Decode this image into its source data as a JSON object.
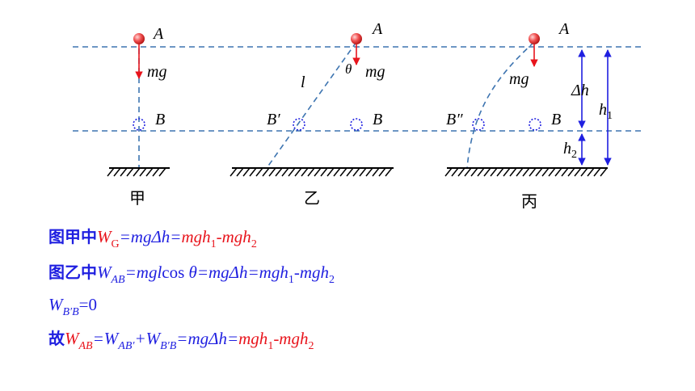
{
  "diagram": {
    "panels": [
      {
        "caption": "甲",
        "top": "A",
        "force": "mg",
        "bottom": "B"
      },
      {
        "caption": "乙",
        "top": "A",
        "force": "mg",
        "length": "l",
        "angle": "θ",
        "start": "B′",
        "bottom": "B"
      },
      {
        "caption": "丙",
        "top": "A",
        "force": "mg",
        "start": "B″",
        "bottom": "B",
        "dh": "Δh",
        "h1": [
          "h",
          "1"
        ],
        "h2": [
          "h",
          "2"
        ]
      }
    ]
  },
  "formulas": [
    {
      "segments": [
        {
          "text": "图甲中",
          "color": "#1f1fe0",
          "style": "cjk"
        },
        {
          "text": "W",
          "color": "#e8141c",
          "style": "italic"
        },
        {
          "text": "G",
          "color": "#e8141c",
          "style": "sub"
        },
        {
          "text": "=mgΔh=",
          "color": "#1f1fe0",
          "style": "italic"
        },
        {
          "text": "mgh",
          "color": "#e8141c",
          "style": "italic"
        },
        {
          "text": "1",
          "color": "#e8141c",
          "style": "sub"
        },
        {
          "text": "-mgh",
          "color": "#e8141c",
          "style": "italic"
        },
        {
          "text": "2",
          "color": "#e8141c",
          "style": "sub"
        }
      ]
    },
    {
      "segments": [
        {
          "text": "图乙中",
          "color": "#1f1fe0",
          "style": "cjk"
        },
        {
          "text": "W",
          "color": "#1f1fe0",
          "style": "italic"
        },
        {
          "text": "AB",
          "color": "#1f1fe0",
          "style": "sub-italic"
        },
        {
          "text": "=mgl",
          "color": "#1f1fe0",
          "style": "italic"
        },
        {
          "text": "cos ",
          "color": "#1f1fe0",
          "style": "upright"
        },
        {
          "text": "θ=mgΔh=mgh",
          "color": "#1f1fe0",
          "style": "italic"
        },
        {
          "text": "1",
          "color": "#1f1fe0",
          "style": "sub"
        },
        {
          "text": "-mgh",
          "color": "#1f1fe0",
          "style": "italic"
        },
        {
          "text": "2",
          "color": "#1f1fe0",
          "style": "sub"
        }
      ]
    },
    {
      "segments": [
        {
          "text": "W",
          "color": "#1f1fe0",
          "style": "italic"
        },
        {
          "text": "B′B",
          "color": "#1f1fe0",
          "style": "sub-italic"
        },
        {
          "text": "=0",
          "color": "#1f1fe0",
          "style": "upright"
        }
      ]
    },
    {
      "segments": [
        {
          "text": "故",
          "color": "#1f1fe0",
          "style": "cjk"
        },
        {
          "text": "W",
          "color": "#e8141c",
          "style": "italic"
        },
        {
          "text": "AB",
          "color": "#e8141c",
          "style": "sub-italic"
        },
        {
          "text": "=W",
          "color": "#1f1fe0",
          "style": "italic"
        },
        {
          "text": "AB′",
          "color": "#1f1fe0",
          "style": "sub-italic"
        },
        {
          "text": "+W",
          "color": "#1f1fe0",
          "style": "italic"
        },
        {
          "text": "B′B",
          "color": "#1f1fe0",
          "style": "sub-italic"
        },
        {
          "text": "=mgΔh=",
          "color": "#1f1fe0",
          "style": "italic"
        },
        {
          "text": "mgh",
          "color": "#e8141c",
          "style": "italic"
        },
        {
          "text": "1",
          "color": "#e8141c",
          "style": "sub"
        },
        {
          "text": "-mgh",
          "color": "#e8141c",
          "style": "italic"
        },
        {
          "text": "2",
          "color": "#e8141c",
          "style": "sub"
        }
      ]
    }
  ]
}
